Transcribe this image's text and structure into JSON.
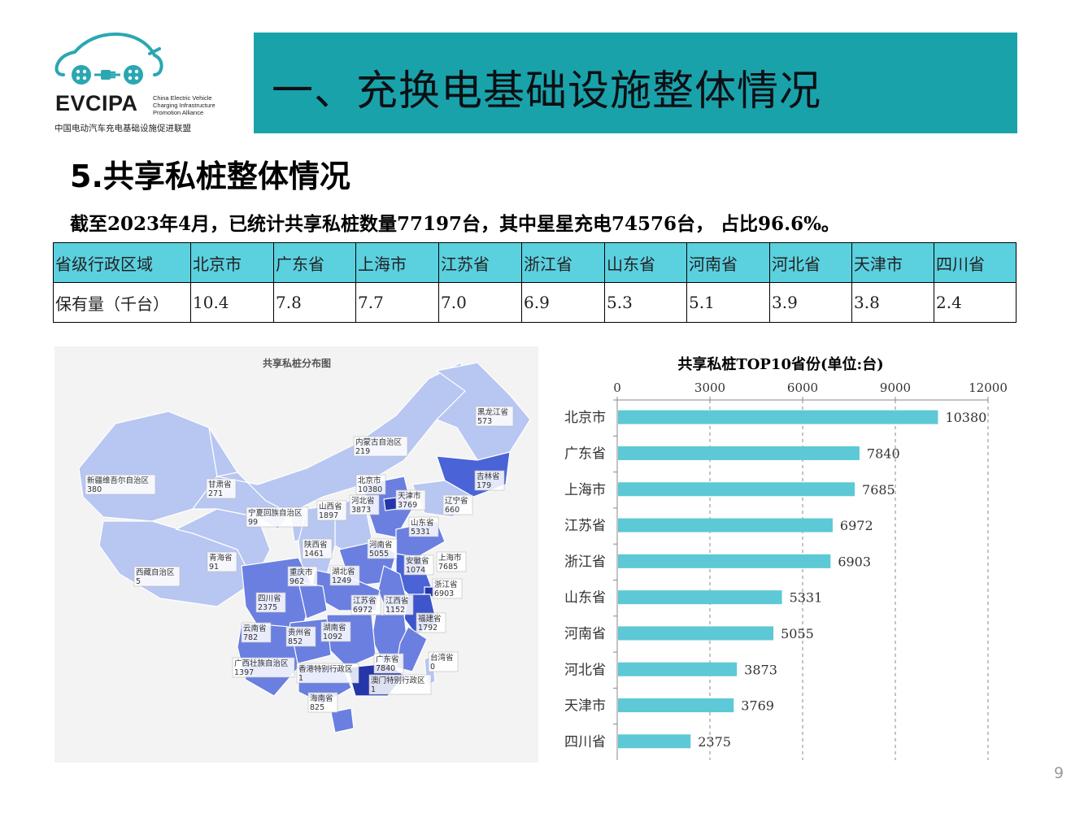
{
  "logo": {
    "name": "EVCIPA",
    "english": [
      "China Electric Vehicle",
      "Charging Infrastructure",
      "Promotion Alliance"
    ],
    "chinese": "中国电动汽车充电基础设施促进联盟"
  },
  "banner": {
    "title": "一、充换电基础设施整体情况"
  },
  "section": {
    "title": "5.共享私桩整体情况",
    "summary": "截至2023年4月，已统计共享私桩数量77197台，其中星星充电74576台， 占比96.6%。"
  },
  "table": {
    "header": [
      "省级行政区域",
      "北京市",
      "广东省",
      "上海市",
      "江苏省",
      "浙江省",
      "山东省",
      "河南省",
      "河北省",
      "天津市",
      "四川省"
    ],
    "row": [
      "保有量（千台）",
      "10.4",
      "7.8",
      "7.7",
      "7.0",
      "6.9",
      "5.3",
      "5.1",
      "3.9",
      "3.8",
      "2.4"
    ]
  },
  "map": {
    "title": "共享私桩分布图",
    "colors": {
      "background": "#f3f3f4",
      "low": "#b8c6f2",
      "mid": "#6a7fe0",
      "high": "#3f55cc",
      "top": "#2536a8"
    },
    "labels": [
      {
        "name": "黑龙江省",
        "value": "573"
      },
      {
        "name": "吉林省",
        "value": "179"
      },
      {
        "name": "辽宁省",
        "value": "660"
      },
      {
        "name": "内蒙古自治区",
        "value": "219"
      },
      {
        "name": "新疆维吾尔自治区",
        "value": "380"
      },
      {
        "name": "甘肃省",
        "value": "271"
      },
      {
        "name": "北京市",
        "value": "10380"
      },
      {
        "name": "天津市",
        "value": "3769"
      },
      {
        "name": "河北省",
        "value": "3873"
      },
      {
        "name": "山西省",
        "value": "1897"
      },
      {
        "name": "宁夏回族自治区",
        "value": "99"
      },
      {
        "name": "山东省",
        "value": "5331"
      },
      {
        "name": "陕西省",
        "value": "1461"
      },
      {
        "name": "河南省",
        "value": "5055"
      },
      {
        "name": "青海省",
        "value": "91"
      },
      {
        "name": "安徽省",
        "value": "1074"
      },
      {
        "name": "上海市",
        "value": "7685"
      },
      {
        "name": "西藏自治区",
        "value": "5"
      },
      {
        "name": "重庆市",
        "value": "962"
      },
      {
        "name": "湖北省",
        "value": "1249"
      },
      {
        "name": "浙江省",
        "value": "6903"
      },
      {
        "name": "四川省",
        "value": "2375"
      },
      {
        "name": "江苏省",
        "value": "6972"
      },
      {
        "name": "江西省",
        "value": "1152"
      },
      {
        "name": "福建省",
        "value": "1792"
      },
      {
        "name": "云南省",
        "value": "782"
      },
      {
        "name": "贵州省",
        "value": "852"
      },
      {
        "name": "湖南省",
        "value": "1092"
      },
      {
        "name": "广西壮族自治区",
        "value": "1397"
      },
      {
        "name": "香港特别行政区",
        "value": "1"
      },
      {
        "name": "广东省",
        "value": "7840"
      },
      {
        "name": "台湾省",
        "value": "0"
      },
      {
        "name": "澳门特别行政区",
        "value": "1"
      },
      {
        "name": "海南省",
        "value": "825"
      }
    ]
  },
  "chart_data": {
    "type": "bar",
    "orientation": "horizontal",
    "title": "共享私桩TOP10省份(单位:台)",
    "categories": [
      "北京市",
      "广东省",
      "上海市",
      "江苏省",
      "浙江省",
      "山东省",
      "河南省",
      "河北省",
      "天津市",
      "四川省"
    ],
    "values": [
      10380,
      7840,
      7685,
      6972,
      6903,
      5331,
      5055,
      3873,
      3769,
      2375
    ],
    "xlim": [
      0,
      12000
    ],
    "ticks": [
      "0",
      "3000",
      "6000",
      "9000",
      "12000"
    ],
    "grid": "dashed-vertical",
    "bar_color": "#5dc8d6"
  },
  "page_number": "9"
}
